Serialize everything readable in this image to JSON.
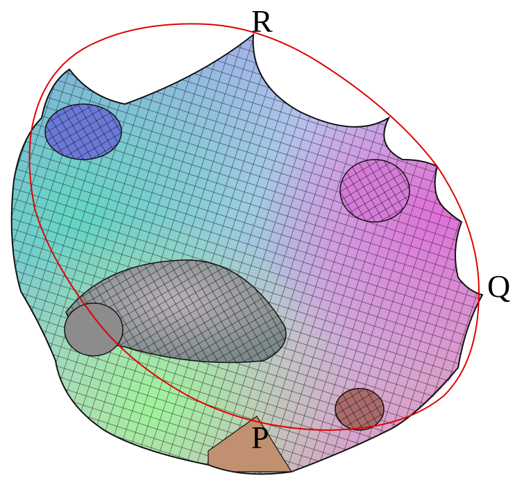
{
  "labels": {
    "top": "R",
    "right": "Q",
    "bottom": "P"
  }
}
